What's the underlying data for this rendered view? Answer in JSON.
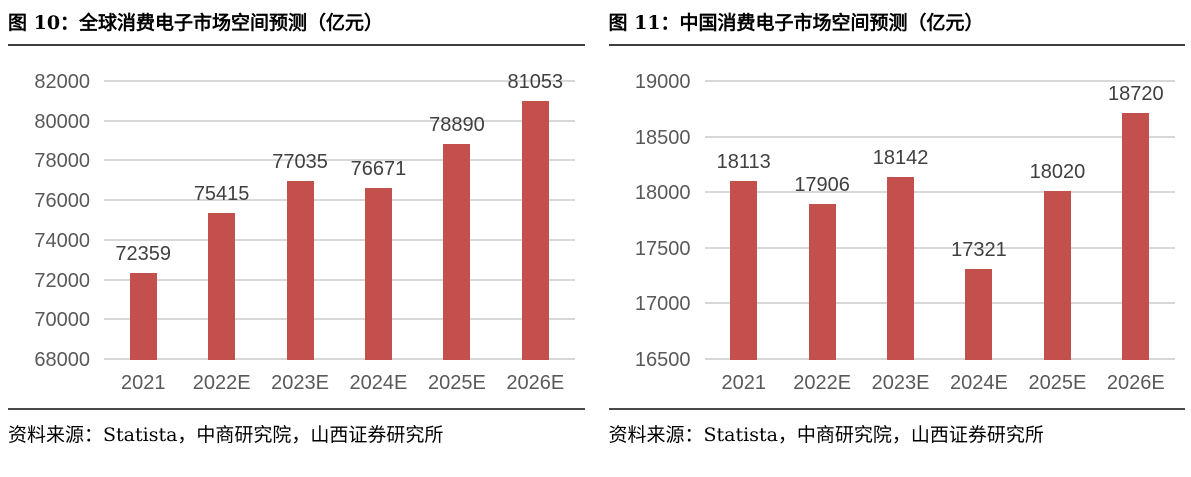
{
  "chart_data": [
    {
      "type": "bar",
      "title": "图 10：全球消费电子市场空间预测（亿元）",
      "categories": [
        "2021",
        "2022E",
        "2023E",
        "2024E",
        "2025E",
        "2026E"
      ],
      "values": [
        72359,
        75415,
        77035,
        76671,
        78890,
        81053
      ],
      "xlabel": "",
      "ylabel": "",
      "ylim": [
        68000,
        82000
      ],
      "ytick_step": 2000,
      "grid": true,
      "legend": "none",
      "bar_color": "#c3504c",
      "source": "资料来源：Statista，中商研究院，山西证券研究所"
    },
    {
      "type": "bar",
      "title": "图 11：中国消费电子市场空间预测（亿元）",
      "categories": [
        "2021",
        "2022E",
        "2023E",
        "2024E",
        "2025E",
        "2026E"
      ],
      "values": [
        18113,
        17906,
        18142,
        17321,
        18020,
        18720
      ],
      "xlabel": "",
      "ylabel": "",
      "ylim": [
        16500,
        19000
      ],
      "ytick_step": 500,
      "grid": true,
      "legend": "none",
      "bar_color": "#c3504c",
      "source": "资料来源：Statista，中商研究院，山西证券研究所"
    }
  ],
  "colors": {
    "bar": "#c3504c",
    "gridline": "#d8d8d8",
    "tick_label": "#595959",
    "value_label": "#404040",
    "divider": "#3f3f3f"
  }
}
